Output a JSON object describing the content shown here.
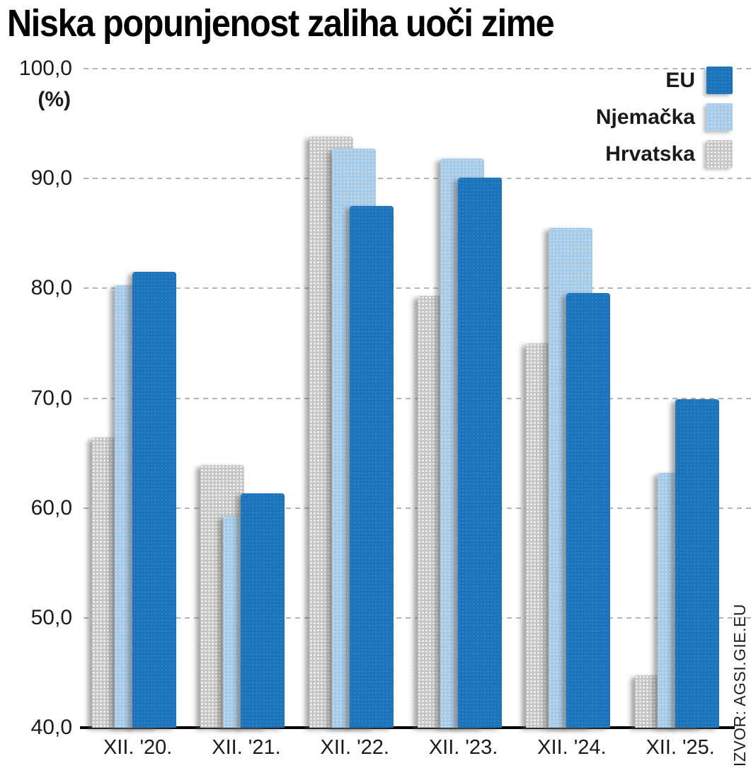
{
  "source": "IZVOR: AGSI.GIE.EU",
  "colors": {
    "eu": "#1b74bb",
    "njemacka": "#a6cbe9",
    "hrvatska": "#c6c6c6",
    "axis": "#000000",
    "grid": "#b5b5b5"
  },
  "chart_data": {
    "type": "bar",
    "title": "Niska popunjenost zaliha uoči zime",
    "xlabel": "",
    "ylabel": "(%)",
    "ylim": [
      40,
      100
    ],
    "grid": "horizontal-dashed",
    "legend_position": "top-right",
    "yticks": [
      {
        "value": 100,
        "label": "100,0"
      },
      {
        "value": 90,
        "label": "90,0"
      },
      {
        "value": 80,
        "label": "80,0"
      },
      {
        "value": 70,
        "label": "70,0"
      },
      {
        "value": 60,
        "label": "60,0"
      },
      {
        "value": 50,
        "label": "50,0"
      },
      {
        "value": 40,
        "label": "40,0"
      }
    ],
    "categories": [
      "XII. '20.",
      "XII. '21.",
      "XII. '22.",
      "XII. '23.",
      "XII. '24.",
      "XII. '25."
    ],
    "series": [
      {
        "name": "EU",
        "key": "eu",
        "color": "#1b74bb",
        "values": [
          81.5,
          61.3,
          87.5,
          90.1,
          79.6,
          69.9
        ]
      },
      {
        "name": "Njemačka",
        "key": "njemacka",
        "color": "#a6cbe9",
        "values": [
          80.3,
          59.3,
          92.7,
          91.8,
          85.5,
          63.2
        ]
      },
      {
        "name": "Hrvatska",
        "key": "hrvatska",
        "color": "#c6c6c6",
        "values": [
          66.4,
          63.9,
          93.8,
          79.3,
          75.0,
          44.8
        ]
      }
    ]
  }
}
